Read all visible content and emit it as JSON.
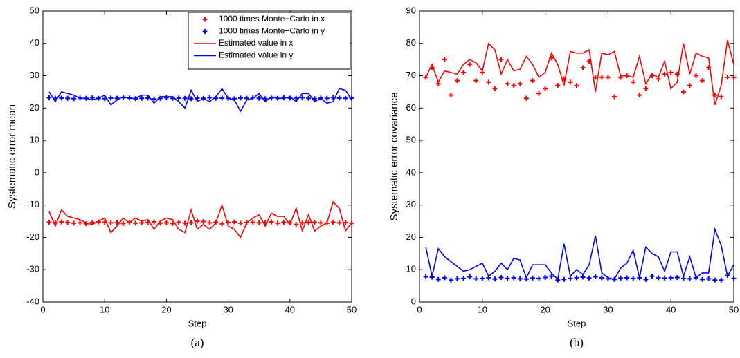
{
  "chart_data": [
    {
      "type": "line",
      "caption": "(a)",
      "x_label": "Step",
      "y_label": "Systematic error mean",
      "x": [
        1,
        2,
        3,
        4,
        5,
        6,
        7,
        8,
        9,
        10,
        11,
        12,
        13,
        14,
        15,
        16,
        17,
        18,
        19,
        20,
        21,
        22,
        23,
        24,
        25,
        26,
        27,
        28,
        29,
        30,
        31,
        32,
        33,
        34,
        35,
        36,
        37,
        38,
        39,
        40,
        41,
        42,
        43,
        44,
        45,
        46,
        47,
        48,
        49,
        50
      ],
      "xlim": [
        0,
        50
      ],
      "xticks": [
        0,
        10,
        20,
        30,
        40,
        50
      ],
      "ylim": [
        -40,
        50
      ],
      "yticks": [
        -40,
        -30,
        -20,
        -10,
        0,
        10,
        20,
        30,
        40,
        50
      ],
      "legend": "upper right",
      "series": [
        {
          "name": "1000 times Monte−Carlo in x",
          "color": "#ff0000",
          "style": "markers",
          "values": [
            -15.3,
            -15.5,
            -15.2,
            -15.4,
            -15.6,
            -15.5,
            -15.8,
            -15.4,
            -15.2,
            -15.3,
            -15.5,
            -15.4,
            -15.7,
            -15.3,
            -15.6,
            -15.5,
            -15.4,
            -15.2,
            -15.6,
            -15.5,
            -15.7,
            -15.3,
            -15.6,
            -15.5,
            -15,
            -15.1,
            -15.5,
            -15.3,
            -15.8,
            -15.4,
            -15.2,
            -15.6,
            -15.4,
            -15.3,
            -15.5,
            -15.4,
            -15.2,
            -15.6,
            -15.3,
            -15.5,
            -16,
            -15.5,
            -15.4,
            -15.3,
            -15.5,
            -15.6,
            -15.3,
            -15.5,
            -15.4,
            -15.6
          ]
        },
        {
          "name": "1000 times Monte−Carlo in y",
          "color": "#0000ff",
          "style": "markers",
          "values": [
            23.2,
            23,
            23.1,
            23,
            22.9,
            23.1,
            23,
            23.2,
            23,
            22.9,
            23.1,
            23,
            23.2,
            23.1,
            22.9,
            23,
            23.1,
            22.8,
            23,
            23.2,
            23,
            23.1,
            23,
            22.9,
            23.1,
            23,
            23.2,
            23,
            23.1,
            23,
            22.9,
            23.1,
            23,
            23.2,
            23,
            22.9,
            23.1,
            23,
            23.2,
            23.1,
            23,
            23.2,
            23,
            22.9,
            23.1,
            23,
            23.2,
            23.1,
            23,
            23.1
          ]
        },
        {
          "name": "Estimated value in x",
          "color": "#ff0000",
          "style": "line",
          "values": [
            -12,
            -16.5,
            -11.5,
            -13.5,
            -14,
            -14.5,
            -15.5,
            -16,
            -15,
            -14,
            -18.5,
            -16.5,
            -14,
            -15.5,
            -14,
            -15,
            -14.5,
            -17.5,
            -15,
            -14,
            -14.5,
            -17.5,
            -18.5,
            -11.5,
            -17.5,
            -16,
            -17.5,
            -15.5,
            -10,
            -16.5,
            -17.5,
            -20,
            -15.5,
            -14,
            -13,
            -16.5,
            -12.5,
            -13.5,
            -13.5,
            -16,
            -11,
            -18,
            -13,
            -18,
            -16.5,
            -15.5,
            -9,
            -11,
            -18,
            -15.5
          ]
        },
        {
          "name": "Estimated value in y",
          "color": "#0000ff",
          "style": "line",
          "values": [
            25,
            22,
            25,
            24.5,
            24,
            23,
            23,
            22.5,
            23,
            24,
            21,
            22.5,
            23.5,
            23,
            23,
            24,
            24,
            21.5,
            23.5,
            23.5,
            23.5,
            22,
            20,
            25.5,
            22,
            23,
            22,
            23.5,
            26,
            23,
            22.5,
            19,
            22.5,
            23,
            24.5,
            22,
            23.5,
            23,
            23,
            23.5,
            22,
            24.5,
            24.5,
            22,
            23,
            21.5,
            22,
            26,
            25.5,
            22.5
          ]
        }
      ]
    },
    {
      "type": "line",
      "caption": "(b)",
      "x_label": "Step",
      "y_label": "Systematic error covariance",
      "x": [
        1,
        2,
        3,
        4,
        5,
        6,
        7,
        8,
        9,
        10,
        11,
        12,
        13,
        14,
        15,
        16,
        17,
        18,
        19,
        20,
        21,
        22,
        23,
        24,
        25,
        26,
        27,
        28,
        29,
        30,
        31,
        32,
        33,
        34,
        35,
        36,
        37,
        38,
        39,
        40,
        41,
        42,
        43,
        44,
        45,
        46,
        47,
        48,
        49,
        50
      ],
      "xlim": [
        0,
        50
      ],
      "xticks": [
        0,
        10,
        20,
        30,
        40,
        50
      ],
      "ylim": [
        0,
        90
      ],
      "yticks": [
        0,
        10,
        20,
        30,
        40,
        50,
        60,
        70,
        80,
        90
      ],
      "series": [
        {
          "color": "#ff0000",
          "style": "markers",
          "values": [
            69.5,
            72.5,
            67.5,
            75,
            64,
            68.5,
            71,
            73.5,
            68.5,
            71,
            68,
            66,
            75,
            67.5,
            67,
            67.5,
            63,
            68.5,
            64.5,
            66,
            75.5,
            67,
            69,
            68,
            67,
            72.5,
            74.5,
            69.5,
            69.5,
            69.5,
            63.5,
            69.5,
            70,
            68,
            64,
            66,
            70,
            69,
            70.5,
            71,
            70.5,
            65,
            67,
            70,
            68.5,
            72.5,
            64,
            63.5,
            69.5,
            69.5
          ]
        },
        {
          "color": "#0000ff",
          "style": "markers",
          "values": [
            7.8,
            7.7,
            7,
            7.5,
            6.8,
            7.2,
            7.3,
            7.8,
            7.2,
            7.3,
            7.5,
            7.1,
            7.6,
            7.3,
            7.5,
            7.2,
            7.1,
            7.4,
            7.3,
            7.6,
            8,
            6.8,
            7,
            7.3,
            7.5,
            7.7,
            7.4,
            7.8,
            7.5,
            7.2,
            7,
            7.4,
            7.5,
            7.3,
            7.5,
            7,
            8,
            7.5,
            7.4,
            7.5,
            7.6,
            7.3,
            7.2,
            7.5,
            7,
            7.2,
            6.8,
            6.8,
            8.2,
            7.3
          ]
        },
        {
          "color": "#ff0000",
          "style": "line",
          "values": [
            69.5,
            73.5,
            68,
            71.5,
            71,
            70.5,
            73.5,
            75,
            74,
            71.5,
            80,
            78,
            70.5,
            75,
            71.5,
            72,
            76,
            73.5,
            69.5,
            71,
            77,
            73.5,
            67,
            77.5,
            77,
            77,
            78,
            65,
            77,
            76.5,
            77.5,
            70,
            70,
            69.5,
            76,
            67.5,
            70.5,
            69.5,
            74.5,
            66,
            68,
            80,
            70.5,
            77,
            76,
            75.5,
            61,
            67,
            81,
            73.5
          ]
        },
        {
          "color": "#0000ff",
          "style": "line",
          "values": [
            17,
            8,
            16.5,
            14,
            12.5,
            11,
            9.5,
            10,
            11,
            12,
            8,
            9.5,
            12,
            10,
            13.5,
            13,
            7.5,
            11.5,
            11.5,
            11.5,
            9,
            7,
            18,
            8,
            10,
            8.5,
            11.5,
            20.5,
            9,
            7.5,
            7,
            10.5,
            12,
            16,
            7.5,
            17,
            15,
            14,
            9.5,
            15.5,
            15.5,
            8,
            14,
            7.5,
            9,
            9,
            22.5,
            17.5,
            8,
            11.5
          ]
        }
      ]
    }
  ]
}
